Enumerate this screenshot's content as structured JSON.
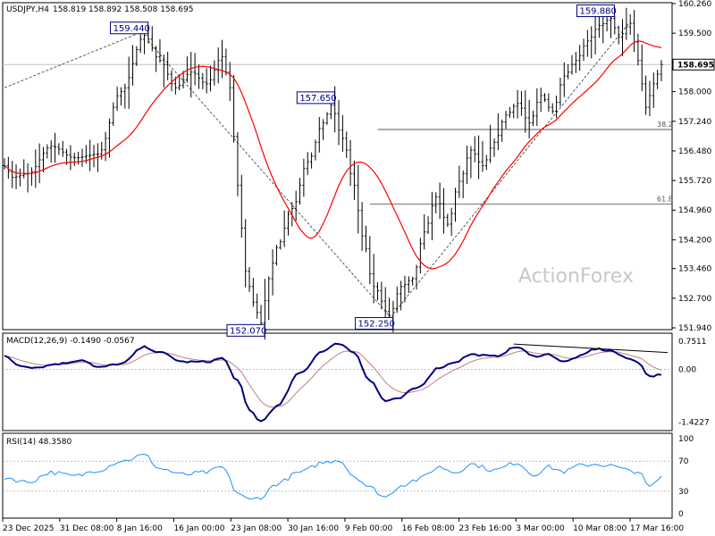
{
  "chart_data": [
    {
      "type": "candlestick",
      "title": "USDJPY,H4",
      "ohlc_label": "158.819 158.892 158.508 158.695",
      "last_price": "158.695",
      "watermark": "ActionForex",
      "ylim": [
        151.94,
        160.26
      ],
      "y_ticks": [
        "160.260",
        "159.500",
        "158.740",
        "158.000",
        "157.240",
        "156.480",
        "155.720",
        "154.960",
        "154.200",
        "153.460",
        "152.700",
        "151.940"
      ],
      "x_ticks": [
        "23 Dec 2025",
        "31 Dec 08:00",
        "8 Jan 16:00",
        "16 Jan 00:00",
        "23 Jan 08:00",
        "30 Jan 16:00",
        "9 Feb 00:00",
        "16 Feb 08:00",
        "23 Feb 16:00",
        "3 Mar 00:00",
        "10 Mar 08:00",
        "17 Mar 16:00"
      ],
      "price_anchors": [
        {
          "i": 0,
          "v": 156.1
        },
        {
          "i": 2,
          "v": 155.8
        },
        {
          "i": 6,
          "v": 155.9
        },
        {
          "i": 12,
          "v": 156.6
        },
        {
          "i": 18,
          "v": 156.3
        },
        {
          "i": 24,
          "v": 156.4
        },
        {
          "i": 30,
          "v": 158.0
        },
        {
          "i": 36,
          "v": 159.44
        },
        {
          "i": 40,
          "v": 158.8
        },
        {
          "i": 44,
          "v": 158.1
        },
        {
          "i": 48,
          "v": 158.5
        },
        {
          "i": 52,
          "v": 158.2
        },
        {
          "i": 56,
          "v": 158.9
        },
        {
          "i": 58,
          "v": 158.1
        },
        {
          "i": 60,
          "v": 155.6
        },
        {
          "i": 62,
          "v": 153.4
        },
        {
          "i": 64,
          "v": 152.6
        },
        {
          "i": 66,
          "v": 152.07
        },
        {
          "i": 68,
          "v": 153.2
        },
        {
          "i": 70,
          "v": 154.0
        },
        {
          "i": 74,
          "v": 155.0
        },
        {
          "i": 78,
          "v": 156.2
        },
        {
          "i": 82,
          "v": 157.2
        },
        {
          "i": 84,
          "v": 157.65
        },
        {
          "i": 87,
          "v": 156.8
        },
        {
          "i": 90,
          "v": 155.6
        },
        {
          "i": 92,
          "v": 154.3
        },
        {
          "i": 95,
          "v": 153.0
        },
        {
          "i": 99,
          "v": 152.25
        },
        {
          "i": 102,
          "v": 153.0
        },
        {
          "i": 105,
          "v": 153.2
        },
        {
          "i": 108,
          "v": 154.4
        },
        {
          "i": 111,
          "v": 155.3
        },
        {
          "i": 114,
          "v": 154.6
        },
        {
          "i": 117,
          "v": 155.7
        },
        {
          "i": 120,
          "v": 156.5
        },
        {
          "i": 123,
          "v": 156.1
        },
        {
          "i": 126,
          "v": 156.7
        },
        {
          "i": 129,
          "v": 157.4
        },
        {
          "i": 132,
          "v": 157.7
        },
        {
          "i": 135,
          "v": 157.2
        },
        {
          "i": 138,
          "v": 157.9
        },
        {
          "i": 141,
          "v": 157.5
        },
        {
          "i": 144,
          "v": 158.4
        },
        {
          "i": 147,
          "v": 158.8
        },
        {
          "i": 150,
          "v": 159.3
        },
        {
          "i": 153,
          "v": 159.7
        },
        {
          "i": 156,
          "v": 159.88
        },
        {
          "i": 158,
          "v": 159.4
        },
        {
          "i": 161,
          "v": 159.75
        },
        {
          "i": 163,
          "v": 158.8
        },
        {
          "i": 165,
          "v": 157.6
        },
        {
          "i": 167,
          "v": 158.2
        },
        {
          "i": 169,
          "v": 158.695
        }
      ],
      "swing_labels": [
        {
          "text": "159.440",
          "i": 36,
          "v": 159.44,
          "pos": "above"
        },
        {
          "text": "152.070",
          "i": 66,
          "v": 152.07,
          "pos": "below"
        },
        {
          "text": "157.650",
          "i": 84,
          "v": 157.65,
          "pos": "above"
        },
        {
          "text": "152.250",
          "i": 99,
          "v": 152.25,
          "pos": "below"
        },
        {
          "text": "159.880",
          "i": 156,
          "v": 159.88,
          "pos": "above"
        }
      ],
      "horizontal_lines": [
        {
          "v": 158.695,
          "color": "#c0c0c0"
        }
      ],
      "fib_levels": [
        {
          "label": "38.2",
          "v": 157.03,
          "from_i": 96
        },
        {
          "label": "61.8",
          "v": 155.12,
          "from_i": 94
        }
      ],
      "trendlines": [
        {
          "from": {
            "i": 0,
            "v": 158.1
          },
          "to": {
            "i": 37,
            "v": 159.6
          }
        },
        {
          "from": {
            "i": 37,
            "v": 159.3
          },
          "to": {
            "i": 99,
            "v": 152.25
          }
        },
        {
          "from": {
            "i": 100,
            "v": 152.3
          },
          "to": {
            "i": 161,
            "v": 159.8
          }
        }
      ],
      "bar_count": 170,
      "ma_color": "#ff0000"
    },
    {
      "type": "line",
      "title": "MACD(12,26,9) -0.1490 -0.0567",
      "ylim": [
        -1.55,
        0.85
      ],
      "y_ticks": [
        "0.7511",
        "0.00",
        "-1.4227"
      ],
      "macd_anchors": [
        {
          "i": 0,
          "v": 0.35
        },
        {
          "i": 4,
          "v": 0.1
        },
        {
          "i": 8,
          "v": 0.05
        },
        {
          "i": 14,
          "v": 0.15
        },
        {
          "i": 20,
          "v": 0.25
        },
        {
          "i": 24,
          "v": 0.05
        },
        {
          "i": 30,
          "v": 0.15
        },
        {
          "i": 36,
          "v": 0.6
        },
        {
          "i": 40,
          "v": 0.45
        },
        {
          "i": 46,
          "v": 0.2
        },
        {
          "i": 52,
          "v": 0.2
        },
        {
          "i": 56,
          "v": 0.3
        },
        {
          "i": 60,
          "v": -0.3
        },
        {
          "i": 63,
          "v": -1.1
        },
        {
          "i": 66,
          "v": -1.4
        },
        {
          "i": 70,
          "v": -1.0
        },
        {
          "i": 76,
          "v": -0.1
        },
        {
          "i": 82,
          "v": 0.5
        },
        {
          "i": 86,
          "v": 0.7
        },
        {
          "i": 90,
          "v": 0.45
        },
        {
          "i": 94,
          "v": -0.3
        },
        {
          "i": 98,
          "v": -0.85
        },
        {
          "i": 101,
          "v": -0.8
        },
        {
          "i": 106,
          "v": -0.5
        },
        {
          "i": 112,
          "v": 0.05
        },
        {
          "i": 116,
          "v": 0.2
        },
        {
          "i": 120,
          "v": 0.4
        },
        {
          "i": 126,
          "v": 0.35
        },
        {
          "i": 132,
          "v": 0.6
        },
        {
          "i": 136,
          "v": 0.35
        },
        {
          "i": 140,
          "v": 0.4
        },
        {
          "i": 144,
          "v": 0.2
        },
        {
          "i": 148,
          "v": 0.35
        },
        {
          "i": 152,
          "v": 0.55
        },
        {
          "i": 156,
          "v": 0.5
        },
        {
          "i": 160,
          "v": 0.3
        },
        {
          "i": 163,
          "v": 0.2
        },
        {
          "i": 166,
          "v": -0.2
        },
        {
          "i": 169,
          "v": -0.149
        }
      ],
      "trendline": {
        "from": {
          "i": 131,
          "v": 0.68
        },
        "to": {
          "i": 169,
          "v": 0.45
        }
      },
      "macd_color": "#000080",
      "signal_color": "#c08080"
    },
    {
      "type": "line",
      "title": "RSI(14) 48.3580",
      "ylim": [
        0,
        100
      ],
      "y_ticks": [
        "100",
        "70",
        "30",
        "0"
      ],
      "levels": [
        70,
        30
      ],
      "rsi_anchors": [
        {
          "i": 0,
          "v": 48
        },
        {
          "i": 6,
          "v": 42
        },
        {
          "i": 12,
          "v": 55
        },
        {
          "i": 18,
          "v": 50
        },
        {
          "i": 24,
          "v": 58
        },
        {
          "i": 30,
          "v": 70
        },
        {
          "i": 36,
          "v": 78
        },
        {
          "i": 40,
          "v": 60
        },
        {
          "i": 46,
          "v": 52
        },
        {
          "i": 52,
          "v": 55
        },
        {
          "i": 56,
          "v": 62
        },
        {
          "i": 60,
          "v": 28
        },
        {
          "i": 63,
          "v": 18
        },
        {
          "i": 66,
          "v": 22
        },
        {
          "i": 70,
          "v": 40
        },
        {
          "i": 76,
          "v": 55
        },
        {
          "i": 82,
          "v": 68
        },
        {
          "i": 86,
          "v": 72
        },
        {
          "i": 90,
          "v": 50
        },
        {
          "i": 94,
          "v": 35
        },
        {
          "i": 98,
          "v": 22
        },
        {
          "i": 102,
          "v": 38
        },
        {
          "i": 106,
          "v": 45
        },
        {
          "i": 112,
          "v": 62
        },
        {
          "i": 116,
          "v": 55
        },
        {
          "i": 120,
          "v": 66
        },
        {
          "i": 126,
          "v": 58
        },
        {
          "i": 132,
          "v": 68
        },
        {
          "i": 136,
          "v": 52
        },
        {
          "i": 140,
          "v": 62
        },
        {
          "i": 144,
          "v": 56
        },
        {
          "i": 148,
          "v": 64
        },
        {
          "i": 152,
          "v": 66
        },
        {
          "i": 156,
          "v": 64
        },
        {
          "i": 160,
          "v": 58
        },
        {
          "i": 163,
          "v": 56
        },
        {
          "i": 166,
          "v": 35
        },
        {
          "i": 169,
          "v": 48.358
        }
      ],
      "line_color": "#1e90ff"
    }
  ]
}
